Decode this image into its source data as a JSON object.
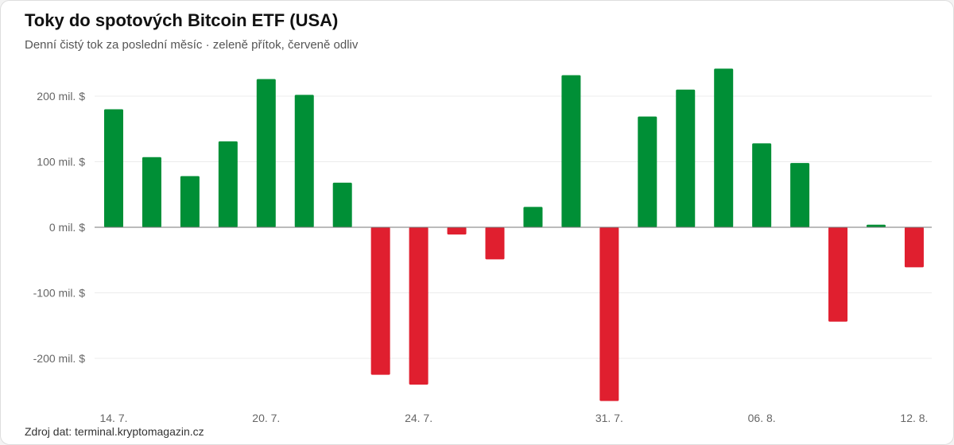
{
  "header": {
    "title": "Toky do spotových Bitcoin ETF (USA)",
    "subtitle": "Denní čistý tok za poslední měsíc · zeleně přítok, červeně odliv"
  },
  "footer": {
    "source": "Zdroj dat: terminal.kryptomagazin.cz"
  },
  "colors": {
    "inflow": "#008f36",
    "outflow": "#e01f2f",
    "grid": "#ececec",
    "zero_line": "#777777"
  },
  "chart_data": {
    "type": "bar",
    "title": "Toky do spotových Bitcoin ETF (USA)",
    "subtitle": "Denní čistý tok za poslední měsíc · zeleně přítok, červeně odliv",
    "xlabel": "",
    "ylabel": "",
    "unit": "mil. $",
    "ylim": [
      -265,
      245
    ],
    "y_ticks": [
      200,
      100,
      0,
      -100,
      -200
    ],
    "y_tick_labels": [
      "200 mil. $",
      "100 mil. $",
      "0 mil. $",
      "-100 mil. $",
      "-200 mil. $"
    ],
    "x_tick_labels": [
      {
        "label": "14. 7.",
        "index": 0
      },
      {
        "label": "20. 7.",
        "index": 4
      },
      {
        "label": "24. 7.",
        "index": 8
      },
      {
        "label": "31. 7.",
        "index": 13
      },
      {
        "label": "06. 8.",
        "index": 17
      },
      {
        "label": "12. 8.",
        "index": 21
      }
    ],
    "grid": true,
    "legend": "none",
    "values": [
      180,
      107,
      78,
      131,
      226,
      202,
      68,
      -225,
      -240,
      -11,
      -49,
      31,
      232,
      -265,
      169,
      210,
      242,
      128,
      98,
      -144,
      4,
      -61
    ]
  }
}
